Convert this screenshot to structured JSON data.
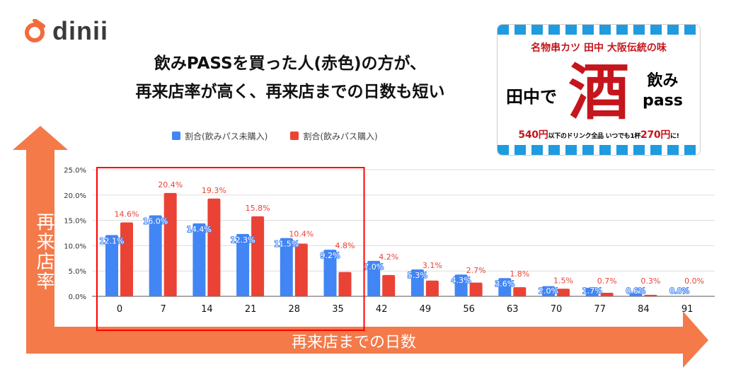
{
  "brand": {
    "name": "dinii",
    "color": "#f26b3a"
  },
  "title": {
    "line1": "飲みPASSを買った人(赤色)の方が、",
    "line2": "再来店率が高く、再来店までの日数も短い"
  },
  "promo_image": {
    "top": "名物串カツ 田中 大阪伝統の味",
    "left": "田中で",
    "center": "酒",
    "right1": "飲み",
    "right2": "pass",
    "bottom_price1": "540円",
    "bottom_text1": "以下のドリンク全品 いつでも1杯",
    "bottom_price2": "270円",
    "bottom_text2": "に!"
  },
  "axis_arrows": {
    "y_label": "再来店率",
    "x_label": "再来店までの日数",
    "color": "#f47a4a"
  },
  "chart_data": {
    "type": "bar",
    "categories": [
      "0",
      "7",
      "14",
      "21",
      "28",
      "35",
      "42",
      "49",
      "56",
      "63",
      "70",
      "77",
      "84",
      "91"
    ],
    "series": [
      {
        "name": "割合(飲みパス未購入)",
        "color": "#4285f4",
        "values": [
          12.1,
          16.0,
          14.4,
          12.3,
          11.5,
          9.2,
          7.0,
          5.3,
          4.3,
          3.6,
          2.0,
          1.7,
          0.6,
          0.0
        ],
        "labels": [
          "12.1%",
          "16.0%",
          "14.4%",
          "12.3%",
          "11.5%",
          "9.2%",
          "7.0%",
          "5.3%",
          "4.3%",
          "3.6%",
          "2.0%",
          "1.7%",
          "0.6%",
          "0.0%"
        ]
      },
      {
        "name": "割合(飲みパス購入)",
        "color": "#ea4335",
        "values": [
          14.6,
          20.4,
          19.3,
          15.8,
          10.4,
          4.8,
          4.2,
          3.1,
          2.7,
          1.8,
          1.5,
          0.7,
          0.3,
          0.0
        ],
        "labels": [
          "14.6%",
          "20.4%",
          "19.3%",
          "15.8%",
          "10.4%",
          "4.8%",
          "4.2%",
          "3.1%",
          "2.7%",
          "1.8%",
          "1.5%",
          "0.7%",
          "0.3%",
          "0.0%"
        ]
      }
    ],
    "yticks": [
      "0.0%",
      "5.0%",
      "10.0%",
      "15.0%",
      "20.0%",
      "25.0%"
    ],
    "ylim": [
      0,
      25
    ],
    "grid": true,
    "legend": "top-left",
    "highlight": {
      "from": "0",
      "to": "35",
      "color": "#ff0000"
    }
  }
}
